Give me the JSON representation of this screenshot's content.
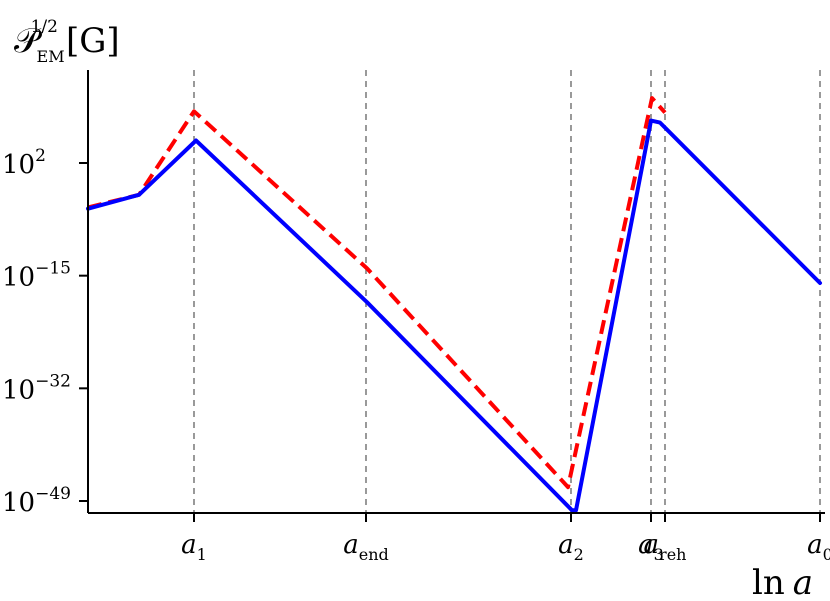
{
  "chart_data": {
    "type": "line",
    "ylabel": {
      "main": "𝒫",
      "sup": "1/2",
      "sub": "EM",
      "unit": "[G]"
    },
    "xlabel": {
      "prefix": "ln",
      "var": "a"
    },
    "y_scale": "log10",
    "ylim_log10": [
      -51,
      12
    ],
    "xlim": [
      0,
      830
    ],
    "yticks": [
      {
        "exp": 2,
        "base": "10",
        "sup": "2"
      },
      {
        "exp": -15,
        "base": "10",
        "sup": "−15"
      },
      {
        "exp": -32,
        "base": "10",
        "sup": "−32"
      },
      {
        "exp": -49,
        "base": "10",
        "sup": "−49"
      }
    ],
    "xticks": [
      {
        "x": 194,
        "base": "a",
        "sub": "1"
      },
      {
        "x": 366,
        "base": "a",
        "sub": "end"
      },
      {
        "x": 571,
        "base": "a",
        "sub": "2"
      },
      {
        "x": 651,
        "base": "a",
        "sub": "3"
      },
      {
        "x": 665,
        "base": "a",
        "sub": "reh"
      },
      {
        "x": 820,
        "base": "a",
        "sub": "0"
      }
    ],
    "grid_x": "dashed vertical lines at xticks",
    "legend": "none",
    "series": [
      {
        "color": "#0000ff",
        "style": "solid",
        "x": [
          88,
          139,
          196,
          367,
          572,
          576,
          651,
          660,
          820
        ],
        "log10_y": [
          -4.9,
          -2.8,
          5.4,
          -19.0,
          -50.4,
          -50.4,
          8.4,
          8.1,
          -16.1
        ]
      },
      {
        "color": "#ff0000",
        "style": "dashed",
        "x": [
          88,
          139,
          194,
          367,
          568,
          652,
          665
        ],
        "log10_y": [
          -4.7,
          -2.8,
          9.8,
          -13.9,
          -46.9,
          11.8,
          9.6
        ]
      }
    ]
  }
}
